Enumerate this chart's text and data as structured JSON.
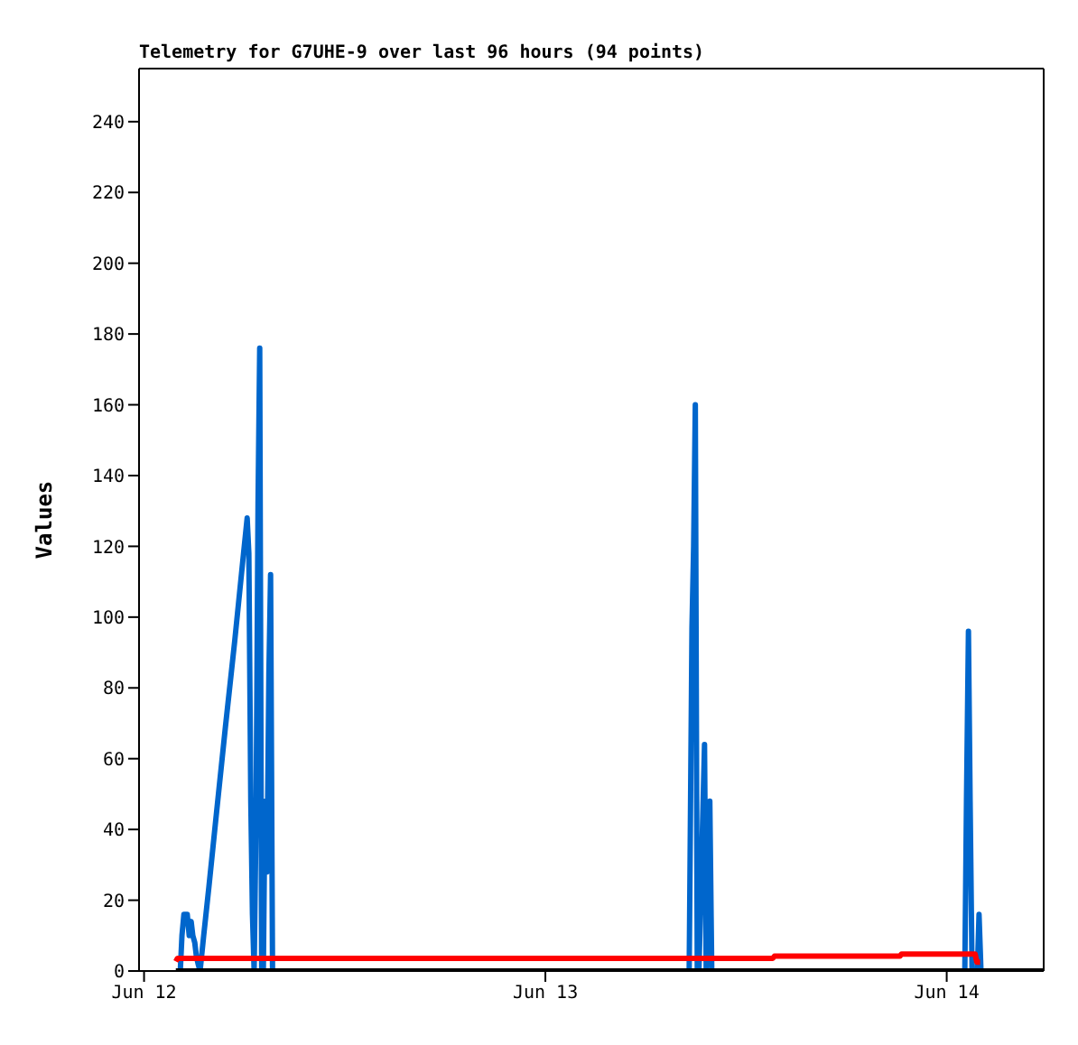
{
  "chart_data": {
    "type": "line",
    "title": "Telemetry for G7UHE-9 over last 96 hours (94 points)",
    "ylabel": "Values",
    "xlim": [
      "--06-11T23:42",
      "--06-14T05:48"
    ],
    "xticks": [
      {
        "value": "--06-12",
        "label": "Jun 12"
      },
      {
        "value": "--06-13",
        "label": "Jun 13"
      },
      {
        "value": "--06-14",
        "label": "Jun 14"
      }
    ],
    "ylim": [
      0,
      255
    ],
    "yticks": [
      0,
      20,
      40,
      60,
      80,
      100,
      120,
      140,
      160,
      180,
      200,
      220,
      240
    ],
    "marker": "none",
    "line_style": "solid",
    "series": [
      {
        "color": "#0066cc",
        "x": [
          "--06-12T02:10",
          "--06-12T02:16",
          "--06-12T02:23",
          "--06-12T02:35",
          "--06-12T02:42",
          "--06-12T02:49",
          "--06-12T02:55",
          "--06-12T03:02",
          "--06-12T03:08",
          "--06-12T03:14",
          "--06-12T03:21",
          "--06-12T03:34",
          "--06-12T03:53",
          "--06-12T04:19",
          "--06-12T04:52",
          "--06-12T05:25",
          "--06-12T05:57",
          "--06-12T06:10",
          "--06-12T06:16",
          "--06-12T06:23",
          "--06-12T06:29",
          "--06-12T06:35",
          "--06-12T06:42",
          "--06-12T06:49",
          "--06-12T06:55",
          "--06-12T07:02",
          "--06-12T07:08",
          "--06-12T07:14",
          "--06-12T07:21",
          "--06-12T07:28",
          "--06-12T07:34",
          "--06-12T07:41",
          "--06-12T07:47",
          "--06-13T08:36",
          "--06-13T08:46",
          "--06-13T08:52",
          "--06-13T08:58",
          "--06-13T09:05",
          "--06-13T09:11",
          "--06-13T09:31",
          "--06-13T09:37",
          "--06-13T09:50",
          "--06-13T09:57",
          "--06-14T01:05",
          "--06-14T01:11",
          "--06-14T01:18",
          "--06-14T01:24",
          "--06-14T01:31",
          "--06-14T01:50",
          "--06-14T01:56",
          "--06-14T02:03"
        ],
        "values": [
          0,
          10,
          16,
          16,
          10,
          14,
          10,
          8,
          4,
          2,
          0,
          10,
          24,
          44,
          69,
          93,
          118,
          128,
          118,
          48,
          16,
          0,
          44,
          132,
          176,
          0,
          0,
          48,
          28,
          84,
          112,
          0,
          0,
          0,
          97,
          120,
          160,
          0,
          0,
          64,
          0,
          48,
          0,
          0,
          48,
          96,
          48,
          0,
          0,
          16,
          0
        ]
      },
      {
        "color": "#ff0000",
        "x": [
          "--06-12T01:54",
          "--06-12T02:00",
          "--06-13T13:36",
          "--06-13T13:42",
          "--06-13T21:12",
          "--06-13T21:18",
          "--06-14T01:42",
          "--06-14T01:48",
          "--06-14T02:00"
        ],
        "values": [
          2.7,
          3.6,
          3.6,
          4.2,
          4.2,
          4.8,
          4.8,
          2.5,
          2.5
        ]
      },
      {
        "color": "#000000",
        "x": [
          "--06-12T01:54",
          "--06-14T05:48"
        ],
        "values": [
          0,
          0
        ]
      }
    ]
  }
}
